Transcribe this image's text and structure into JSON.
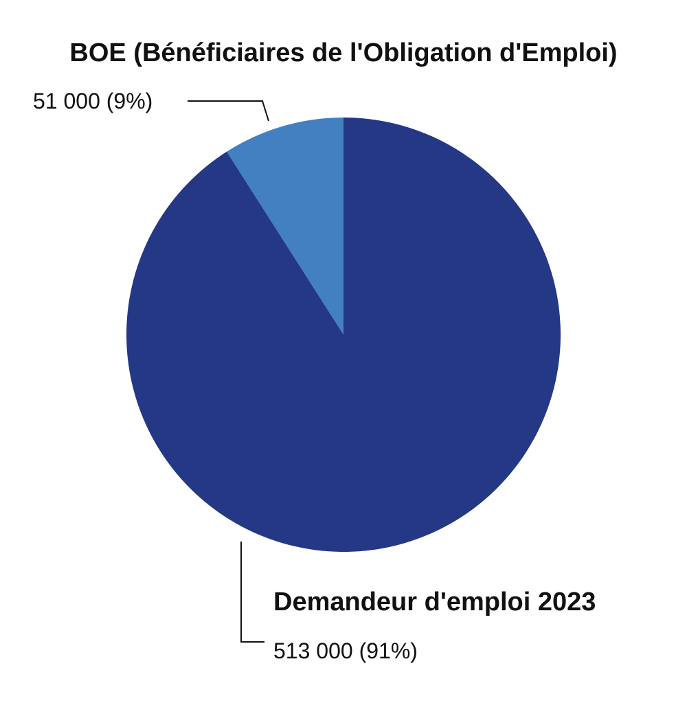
{
  "chart_data": {
    "type": "pie",
    "start_angle_deg": 0,
    "direction": "counterclockwise",
    "slices": [
      {
        "name": "BOE (Bénéficiaires de l'Obligation d'Emploi)",
        "value": 51000,
        "percent": 9,
        "value_label": "51 000 (9%)",
        "color": "#4380c2"
      },
      {
        "name": "Demandeur d'emploi 2023",
        "value": 513000,
        "percent": 91,
        "value_label": "513 000 (91%)",
        "color": "#243886"
      }
    ]
  }
}
